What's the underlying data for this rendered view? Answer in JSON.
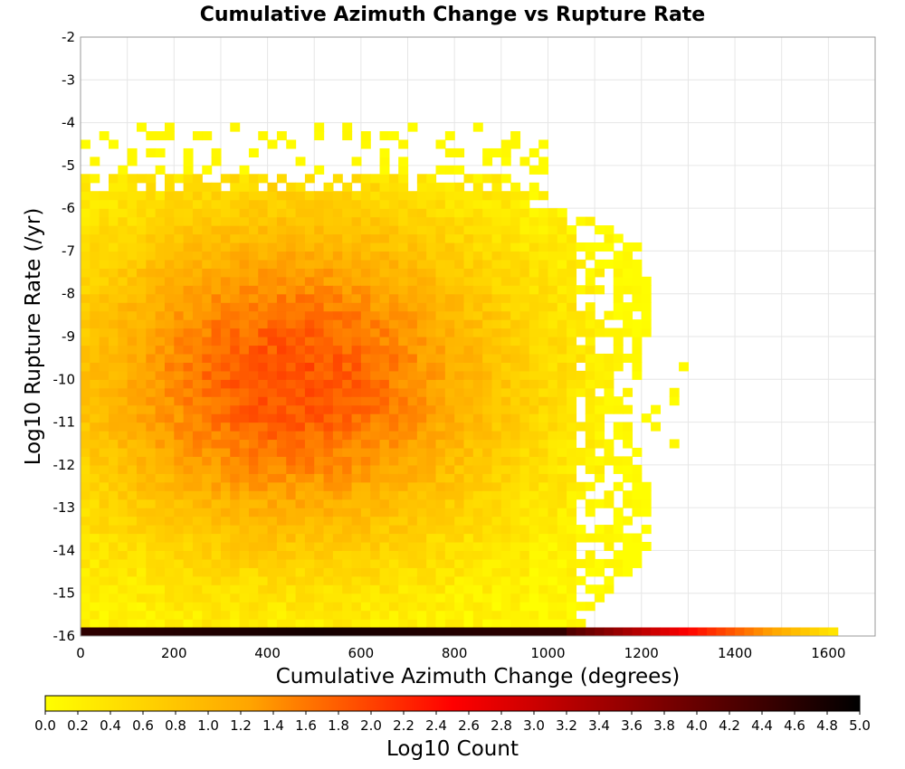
{
  "chart_data": {
    "type": "heatmap",
    "title": "Cumulative Azimuth Change vs Rupture Rate",
    "xlabel": "Cumulative Azimuth Change (degrees)",
    "ylabel": "Log10 Rupture Rate (/yr)",
    "xlim": [
      0,
      1700
    ],
    "ylim": [
      -16,
      -2
    ],
    "xticks": [
      "0",
      "200",
      "400",
      "600",
      "800",
      "1000",
      "1200",
      "1400",
      "1600"
    ],
    "yticks": [
      "-2",
      "-3",
      "-4",
      "-5",
      "-6",
      "-7",
      "-8",
      "-9",
      "-10",
      "-11",
      "-12",
      "-13",
      "-14",
      "-15",
      "-16"
    ],
    "bin_width_x": 20,
    "bin_height_y": 0.2,
    "grid": true,
    "colorbar": {
      "label": "Log10 Count",
      "range": [
        0.0,
        5.0
      ],
      "ticks": [
        "0.0",
        "0.2",
        "0.4",
        "0.6",
        "0.8",
        "1.0",
        "1.2",
        "1.4",
        "1.6",
        "1.8",
        "2.0",
        "2.2",
        "2.4",
        "2.6",
        "2.8",
        "3.0",
        "3.2",
        "3.4",
        "3.6",
        "3.8",
        "4.0",
        "4.2",
        "4.4",
        "4.6",
        "4.8",
        "5.0"
      ],
      "colors": [
        "#ffff00",
        "#ffa500",
        "#ff0000",
        "#800000",
        "#000000"
      ],
      "position": "bottom"
    },
    "density_summary": {
      "dense_region_x": [
        0,
        1050
      ],
      "dense_region_y": [
        -15.9,
        -5.2
      ],
      "peak_center": [
        450,
        -10
      ],
      "peak_log10_count": 1.9,
      "bottom_row": {
        "y": -16,
        "x_range": [
          0,
          1620
        ],
        "peak_log10_count": 4.8
      }
    }
  }
}
